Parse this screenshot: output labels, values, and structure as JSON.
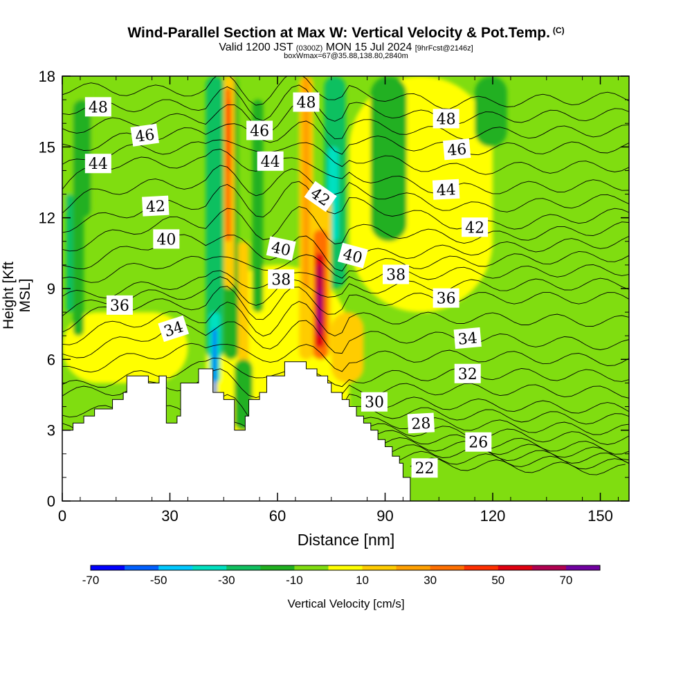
{
  "chart_data": {
    "type": "heatmap",
    "title": "Wind-Parallel Section at Max W: Vertical Velocity & Pot.Temp.",
    "title_mark": "(C)",
    "subtitle_parts": [
      "Valid 1200 JST ",
      "(0300Z)",
      " MON 15 Jul 2024 ",
      "[9hrFcst@2146z]"
    ],
    "subtitle2": "boxWmax=67@35.88,138.80,2840m",
    "xlabel": "Distance [nm]",
    "ylabel": "Height [Kft MSL]",
    "xlim": [
      0,
      158
    ],
    "ylim": [
      0,
      18
    ],
    "xticks": [
      "0",
      "30",
      "60",
      "90",
      "120",
      "150"
    ],
    "yticks": [
      "0",
      "3",
      "6",
      "9",
      "12",
      "15",
      "18"
    ],
    "colorbar": {
      "label": "Vertical Velocity [cm/s]",
      "tick_labels": [
        "-70",
        "-50",
        "-30",
        "-10",
        "10",
        "30",
        "50",
        "70"
      ],
      "colors": [
        "#0000ff",
        "#0060ff",
        "#00c8ff",
        "#00e0c0",
        "#10c060",
        "#20b020",
        "#80dd10",
        "#ffff00",
        "#ffcc00",
        "#ffa000",
        "#ff7000",
        "#ff3000",
        "#e00010",
        "#b00050",
        "#7000a0"
      ]
    },
    "contour_field": "Potential temperature",
    "theta_labels": [
      {
        "text": "48",
        "x": 10,
        "y": 16.7,
        "rot": 0
      },
      {
        "text": "48",
        "x": 68,
        "y": 16.9,
        "rot": 0
      },
      {
        "text": "48",
        "x": 107,
        "y": 16.2,
        "rot": 0
      },
      {
        "text": "46",
        "x": 23,
        "y": 15.5,
        "rot": -8
      },
      {
        "text": "46",
        "x": 55,
        "y": 15.7,
        "rot": 0
      },
      {
        "text": "46",
        "x": 110,
        "y": 14.9,
        "rot": -5
      },
      {
        "text": "44",
        "x": 10,
        "y": 14.3,
        "rot": 0
      },
      {
        "text": "44",
        "x": 58,
        "y": 14.4,
        "rot": 0
      },
      {
        "text": "44",
        "x": 107,
        "y": 13.2,
        "rot": -3
      },
      {
        "text": "42",
        "x": 26,
        "y": 12.5,
        "rot": -3
      },
      {
        "text": "42",
        "x": 72,
        "y": 12.9,
        "rot": 35
      },
      {
        "text": "42",
        "x": 115,
        "y": 11.6,
        "rot": 0
      },
      {
        "text": "40",
        "x": 29,
        "y": 11.1,
        "rot": 0
      },
      {
        "text": "40",
        "x": 61,
        "y": 10.7,
        "rot": 12
      },
      {
        "text": "40",
        "x": 81,
        "y": 10.4,
        "rot": 15
      },
      {
        "text": "38",
        "x": 61,
        "y": 9.4,
        "rot": 0
      },
      {
        "text": "38",
        "x": 93,
        "y": 9.6,
        "rot": 0
      },
      {
        "text": "36",
        "x": 16,
        "y": 8.3,
        "rot": 0
      },
      {
        "text": "36",
        "x": 107,
        "y": 8.6,
        "rot": 0
      },
      {
        "text": "34",
        "x": 31,
        "y": 7.3,
        "rot": -18
      },
      {
        "text": "34",
        "x": 113,
        "y": 6.9,
        "rot": -5
      },
      {
        "text": "32",
        "x": 113,
        "y": 5.4,
        "rot": 0
      },
      {
        "text": "30",
        "x": 87,
        "y": 4.2,
        "rot": 0
      },
      {
        "text": "28",
        "x": 100,
        "y": 3.3,
        "rot": -3
      },
      {
        "text": "26",
        "x": 116,
        "y": 2.5,
        "rot": 0
      },
      {
        "text": "22",
        "x": 101,
        "y": 1.4,
        "rot": 0
      }
    ]
  }
}
